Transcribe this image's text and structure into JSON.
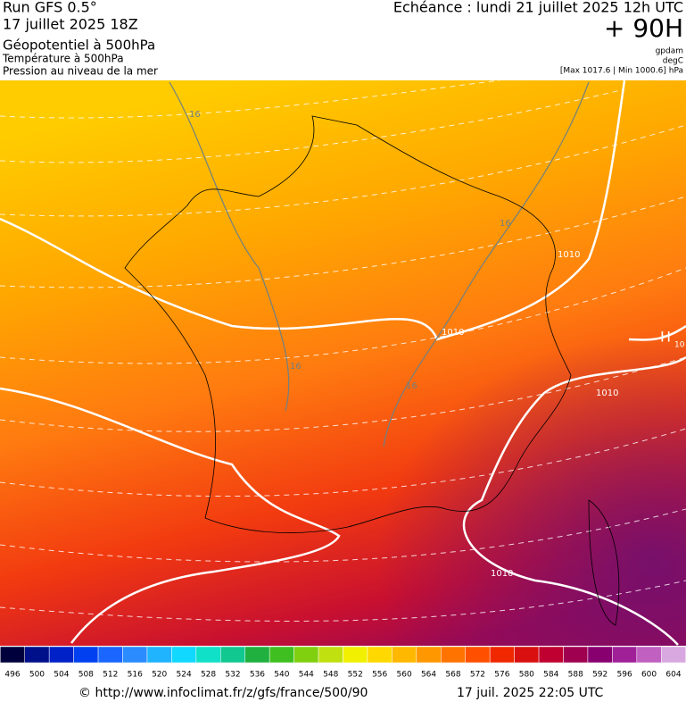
{
  "header": {
    "run": "Run GFS 0.5°",
    "date": "17 juillet 2025 18Z",
    "layer1": "Géopotentiel à 500hPa",
    "layer2": "Température à 500hPa",
    "layer3": "Pression au niveau de la mer",
    "valid": "Echéance : lundi 21 juillet 2025 12h UTC",
    "lead": "+ 90H",
    "unit1": "gpdam",
    "unit2": "degC",
    "range": "[Max 1017.6 | Min 1000.6] hPa"
  },
  "map": {
    "labels": [
      "16",
      "16",
      "16",
      "16",
      "1010",
      "1010",
      "1010",
      "1010",
      "H",
      "10"
    ]
  },
  "scale": {
    "values": [
      496,
      500,
      504,
      508,
      512,
      516,
      520,
      524,
      528,
      532,
      536,
      540,
      544,
      548,
      552,
      556,
      560,
      564,
      568,
      572,
      576,
      580,
      584,
      588,
      592,
      596,
      600,
      604
    ],
    "colors": [
      "#00003c",
      "#00108a",
      "#0020c8",
      "#0040f0",
      "#1a66ff",
      "#2a8cff",
      "#20b4ff",
      "#10d8ff",
      "#10e0c8",
      "#10c890",
      "#20b040",
      "#40c020",
      "#80d010",
      "#c0e010",
      "#f0f000",
      "#ffd800",
      "#ffb800",
      "#ff9800",
      "#ff7400",
      "#ff5000",
      "#f02800",
      "#d81010",
      "#c00030",
      "#a00050",
      "#880070",
      "#a02098",
      "#c060c0",
      "#d8a8e0"
    ]
  },
  "footer": {
    "source": "© http://www.infoclimat.fr/z/gfs/france/500/90",
    "stamp": "17 juil. 2025 22:05 UTC"
  }
}
